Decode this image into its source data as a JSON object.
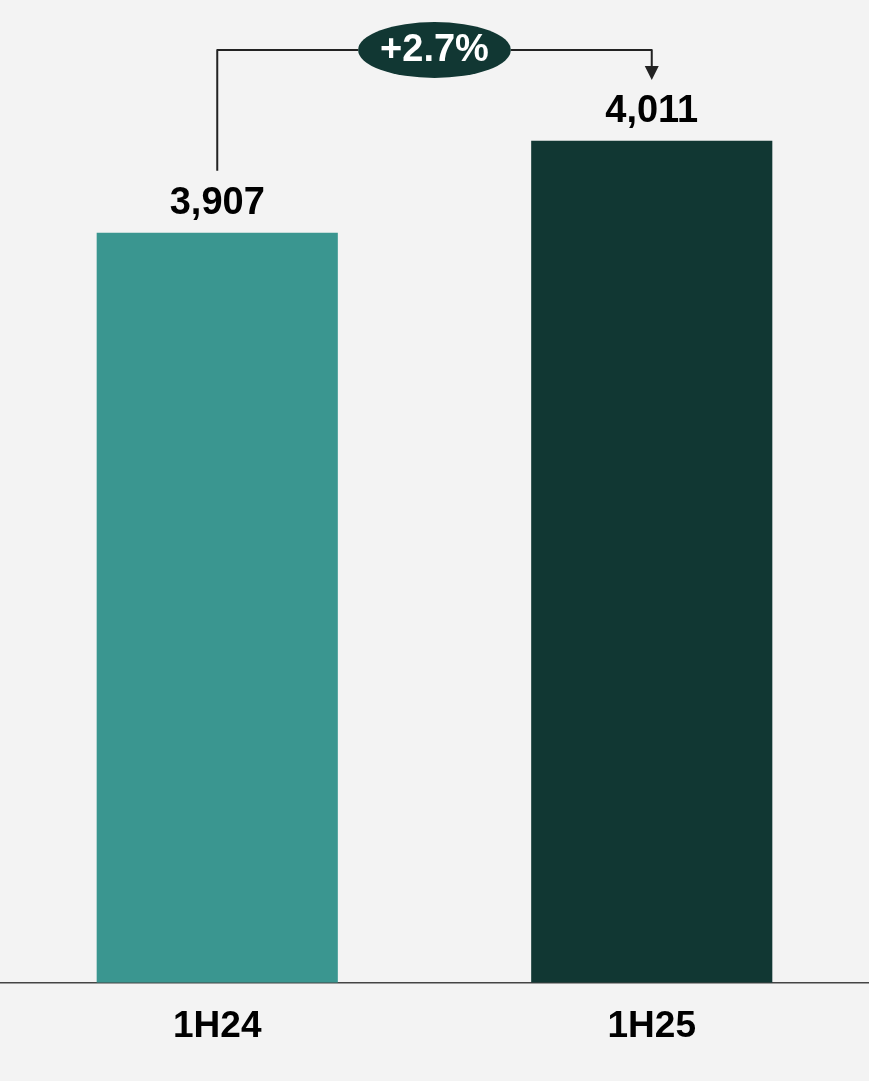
{
  "chart_data": {
    "type": "bar",
    "categories": [
      "1H24",
      "1H25"
    ],
    "values": [
      3907,
      4011
    ],
    "colors": [
      "#3a9690",
      "#113733"
    ],
    "value_labels": [
      "3,907",
      "4,011"
    ],
    "ylim": [
      3060,
      4170
    ],
    "tick_labels": "x",
    "grid": false,
    "legend": false,
    "annotations": [
      "+2.7%"
    ]
  }
}
